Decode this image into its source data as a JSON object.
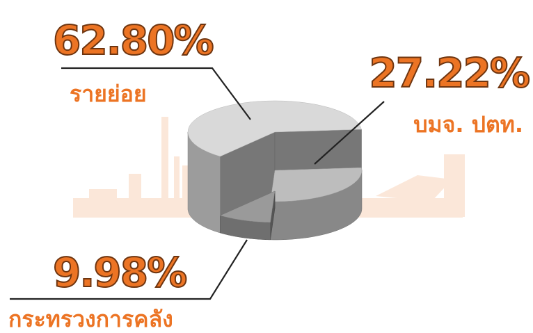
{
  "chart_data": {
    "type": "pie3d",
    "categories": [
      "รายย่อย",
      "บมจ. ปตท.",
      "กระทรวงการคลัง"
    ],
    "values": [
      62.8,
      27.22,
      9.98
    ],
    "value_labels": [
      "62.80%",
      "27.22%",
      "9.98%"
    ],
    "colors": [
      "#d9d9d9",
      "#bdbdbd",
      "#9a9a9a"
    ]
  }
}
